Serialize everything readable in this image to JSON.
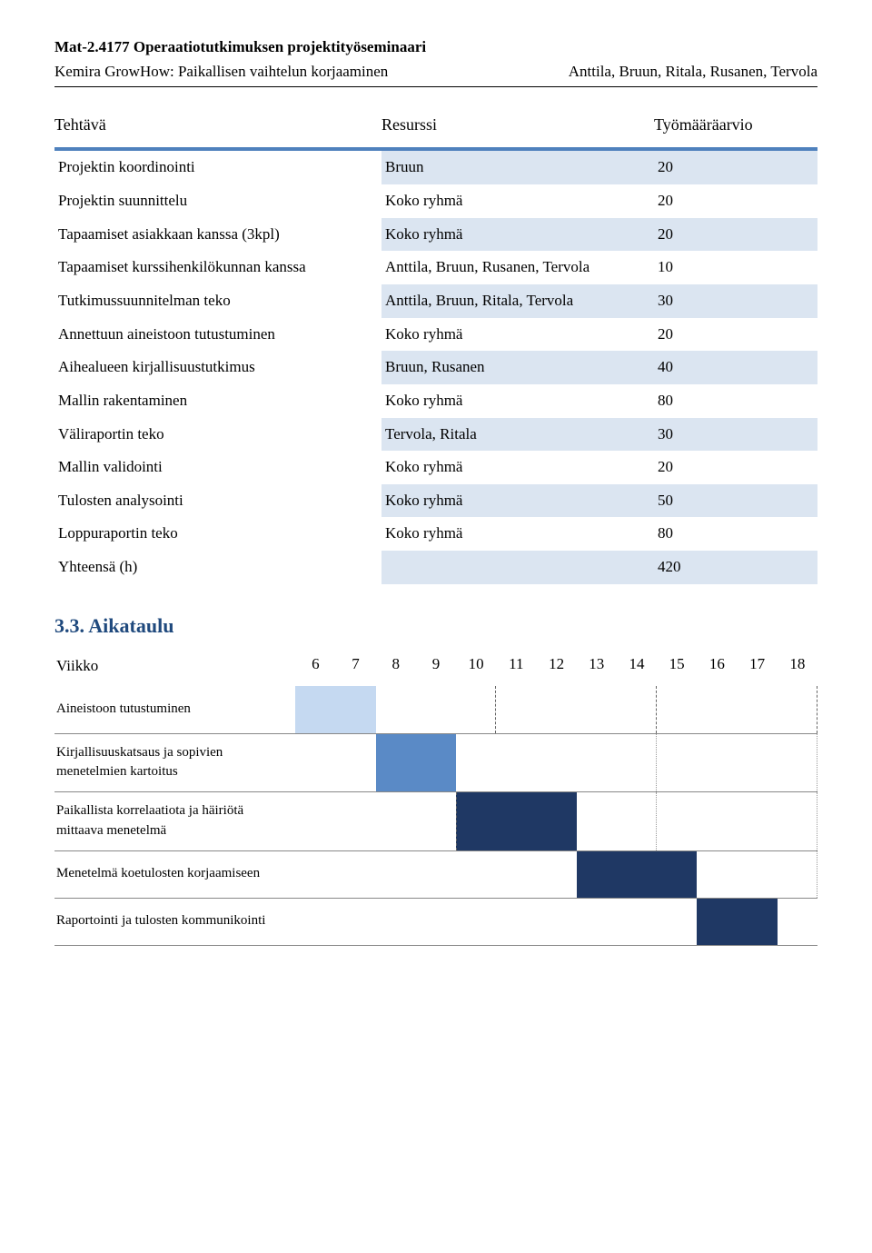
{
  "header": {
    "course_code": "Mat-2.4177",
    "course_title": "Operaatiotutkimuksen projektityöseminaari",
    "subtitle": "Kemira GrowHow: Paikallisen vaihtelun korjaaminen",
    "authors": "Anttila, Bruun, Ritala, Rusanen, Tervola"
  },
  "columns": {
    "task": "Tehtävä",
    "resource": "Resurssi",
    "estimate": "Työmääräarvio"
  },
  "colors": {
    "accent_border": "#4f81bd",
    "shade_bg": "#dbe5f1",
    "heading_color": "#1f497d",
    "gantt_light": "#c5d9f1",
    "gantt_mid": "#5a8ac6",
    "gantt_dark": "#1f3864"
  },
  "tasks": [
    {
      "name": "Projektin koordinointi",
      "resource": "Bruun",
      "estimate": "20"
    },
    {
      "name": "Projektin suunnittelu",
      "resource": "Koko ryhmä",
      "estimate": "20"
    },
    {
      "name": "Tapaamiset asiakkaan kanssa (3kpl)",
      "resource": "Koko ryhmä",
      "estimate": "20"
    },
    {
      "name": "Tapaamiset kurssihenkilökunnan kanssa",
      "resource": "Anttila, Bruun, Rusanen, Tervola",
      "estimate": "10"
    },
    {
      "name": "Tutkimussuunnitelman teko",
      "resource": "Anttila, Bruun, Ritala, Tervola",
      "estimate": "30"
    },
    {
      "name": "Annettuun aineistoon tutustuminen",
      "resource": "Koko ryhmä",
      "estimate": "20"
    },
    {
      "name": "Aihealueen kirjallisuustutkimus",
      "resource": "Bruun, Rusanen",
      "estimate": "40"
    },
    {
      "name": "Mallin rakentaminen",
      "resource": "Koko ryhmä",
      "estimate": "80"
    },
    {
      "name": "Väliraportin teko",
      "resource": "Tervola, Ritala",
      "estimate": "30"
    },
    {
      "name": "Mallin validointi",
      "resource": "Koko ryhmä",
      "estimate": "20"
    },
    {
      "name": "Tulosten analysointi",
      "resource": "Koko ryhmä",
      "estimate": "50"
    },
    {
      "name": "Loppuraportin teko",
      "resource": "Koko ryhmä",
      "estimate": "80"
    },
    {
      "name": "Yhteensä (h)",
      "resource": "",
      "estimate": "420"
    }
  ],
  "gantt": {
    "heading": "3.3. Aikataulu",
    "week_label": "Viikko",
    "weeks": [
      "6",
      "7",
      "8",
      "9",
      "10",
      "11",
      "12",
      "13",
      "14",
      "15",
      "16",
      "17",
      "18"
    ],
    "rows": [
      {
        "label": "Aineistoon tutustuminen",
        "bars": [
          {
            "week": "6",
            "color": "#c5d9f1"
          },
          {
            "week": "7",
            "color": "#c5d9f1"
          }
        ],
        "dashes": [
          "10",
          "14",
          "18"
        ]
      },
      {
        "label": "Kirjallisuuskatsaus ja sopivien menetelmien kartoitus",
        "bars": [
          {
            "week": "8",
            "color": "#5a8ac6"
          },
          {
            "week": "9",
            "color": "#5a8ac6"
          }
        ],
        "dots": [
          "14",
          "18"
        ]
      },
      {
        "label": "Paikallista korrelaatiota ja häiriötä mittaava menetelmä",
        "bars": [
          {
            "week": "10",
            "color": "#1f3864"
          },
          {
            "week": "11",
            "color": "#1f3864"
          },
          {
            "week": "12",
            "color": "#1f3864"
          }
        ],
        "dashes_left": [
          "10"
        ],
        "dots": [
          "14",
          "18"
        ]
      },
      {
        "label": "Menetelmä koetulosten korjaamiseen",
        "bars": [
          {
            "week": "13",
            "color": "#1f3864"
          },
          {
            "week": "14",
            "color": "#1f3864"
          },
          {
            "week": "15",
            "color": "#1f3864"
          }
        ],
        "dots": [
          "18"
        ]
      },
      {
        "label": "Raportointi ja tulosten kommunikointi",
        "bars": [
          {
            "week": "16",
            "color": "#1f3864"
          },
          {
            "week": "17",
            "color": "#1f3864"
          }
        ]
      }
    ]
  }
}
